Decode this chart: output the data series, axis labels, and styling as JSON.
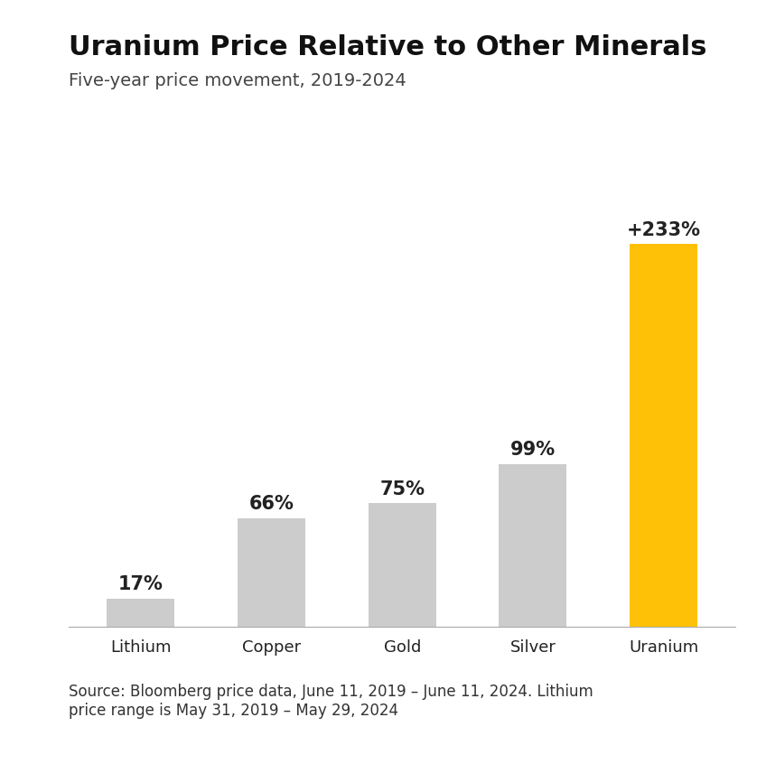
{
  "title": "Uranium Price Relative to Other Minerals",
  "subtitle": "Five-year price movement, 2019-2024",
  "categories": [
    "Lithium",
    "Copper",
    "Gold",
    "Silver",
    "Uranium"
  ],
  "values": [
    17,
    66,
    75,
    99,
    233
  ],
  "labels": [
    "17%",
    "66%",
    "75%",
    "99%",
    "+233%"
  ],
  "bar_colors": [
    "#cccccc",
    "#cccccc",
    "#cccccc",
    "#cccccc",
    "#FFC107"
  ],
  "source_text": "Source: Bloomberg price data, June 11, 2019 – June 11, 2024. Lithium\nprice range is May 31, 2019 – May 29, 2024",
  "background_color": "#ffffff",
  "title_fontsize": 22,
  "subtitle_fontsize": 14,
  "label_fontsize": 15,
  "tick_fontsize": 13,
  "source_fontsize": 12,
  "ylim": [
    0,
    270
  ]
}
